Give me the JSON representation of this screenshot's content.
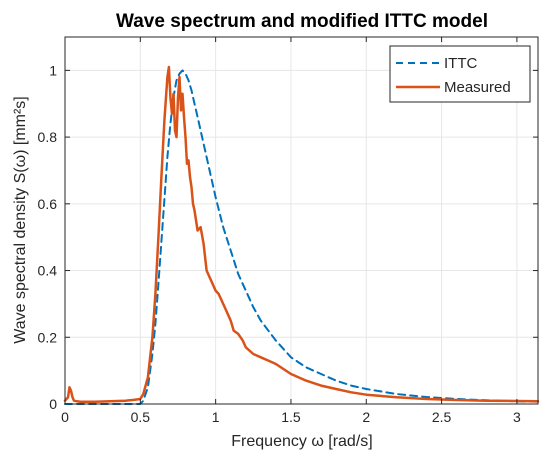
{
  "chart_data": {
    "type": "line",
    "title": "Wave spectrum and modified ITTC model",
    "xlabel": "Frequency ω [rad/s]",
    "ylabel": "Wave spectral density S(ω) [mm²s]",
    "xlim": [
      0,
      3.14
    ],
    "ylim": [
      0,
      1.1
    ],
    "xticks": [
      0,
      0.5,
      1,
      1.5,
      2,
      2.5,
      3
    ],
    "xtick_labels": [
      "0",
      "0.5",
      "1",
      "1.5",
      "2",
      "2.5",
      "3"
    ],
    "yticks": [
      0,
      0.2,
      0.4,
      0.6,
      0.8,
      1
    ],
    "ytick_labels": [
      "0",
      "0.2",
      "0.4",
      "0.6",
      "0.8",
      "1"
    ],
    "grid": true,
    "legend": "top-right",
    "series": [
      {
        "name": "ITTC",
        "style": "dashed",
        "color": "#0072BD",
        "x": [
          0.0,
          0.5,
          0.52,
          0.55,
          0.58,
          0.6,
          0.62,
          0.65,
          0.68,
          0.7,
          0.72,
          0.74,
          0.76,
          0.78,
          0.8,
          0.82,
          0.84,
          0.86,
          0.88,
          0.9,
          0.95,
          1.0,
          1.05,
          1.1,
          1.15,
          1.2,
          1.25,
          1.3,
          1.4,
          1.5,
          1.6,
          1.7,
          1.8,
          1.9,
          2.0,
          2.2,
          2.4,
          2.6,
          2.8,
          3.0,
          3.14
        ],
        "y": [
          0.0,
          0.0,
          0.01,
          0.05,
          0.15,
          0.24,
          0.36,
          0.55,
          0.74,
          0.84,
          0.92,
          0.97,
          0.99,
          1.0,
          0.99,
          0.97,
          0.94,
          0.9,
          0.86,
          0.82,
          0.72,
          0.62,
          0.53,
          0.46,
          0.39,
          0.34,
          0.29,
          0.25,
          0.19,
          0.14,
          0.11,
          0.09,
          0.07,
          0.055,
          0.045,
          0.03,
          0.021,
          0.015,
          0.011,
          0.008,
          0.007
        ]
      },
      {
        "name": "Measured",
        "style": "solid",
        "color": "#D95319",
        "x": [
          0.0,
          0.02,
          0.03,
          0.04,
          0.05,
          0.06,
          0.08,
          0.1,
          0.2,
          0.3,
          0.4,
          0.45,
          0.5,
          0.52,
          0.55,
          0.58,
          0.6,
          0.62,
          0.64,
          0.66,
          0.68,
          0.69,
          0.7,
          0.71,
          0.72,
          0.73,
          0.74,
          0.75,
          0.76,
          0.77,
          0.78,
          0.79,
          0.8,
          0.81,
          0.82,
          0.83,
          0.84,
          0.85,
          0.86,
          0.88,
          0.9,
          0.92,
          0.94,
          0.96,
          0.98,
          1.0,
          1.02,
          1.05,
          1.08,
          1.1,
          1.12,
          1.15,
          1.18,
          1.2,
          1.25,
          1.3,
          1.35,
          1.4,
          1.5,
          1.6,
          1.7,
          1.8,
          1.9,
          2.0,
          2.2,
          2.4,
          2.6,
          2.8,
          3.0,
          3.14
        ],
        "y": [
          0.01,
          0.02,
          0.05,
          0.04,
          0.02,
          0.01,
          0.008,
          0.007,
          0.007,
          0.008,
          0.01,
          0.012,
          0.015,
          0.03,
          0.08,
          0.2,
          0.33,
          0.5,
          0.68,
          0.85,
          0.98,
          1.01,
          0.92,
          0.87,
          0.93,
          0.82,
          0.8,
          0.92,
          0.98,
          0.88,
          0.93,
          0.86,
          0.8,
          0.72,
          0.73,
          0.68,
          0.65,
          0.6,
          0.58,
          0.52,
          0.53,
          0.48,
          0.4,
          0.38,
          0.36,
          0.34,
          0.33,
          0.3,
          0.27,
          0.25,
          0.22,
          0.21,
          0.19,
          0.17,
          0.15,
          0.14,
          0.13,
          0.12,
          0.09,
          0.07,
          0.055,
          0.045,
          0.035,
          0.028,
          0.02,
          0.015,
          0.012,
          0.01,
          0.009,
          0.008
        ]
      }
    ]
  }
}
